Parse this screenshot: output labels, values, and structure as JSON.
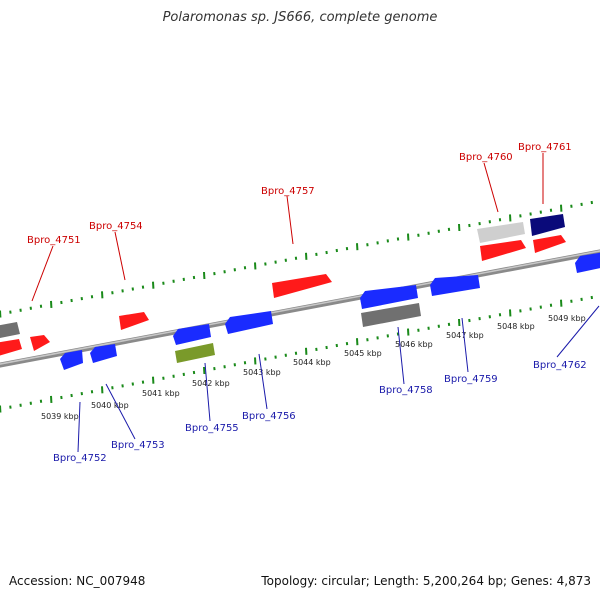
{
  "title": "Polaromonas sp. JS666, complete genome",
  "footer": {
    "accession": "Accession: NC_007948",
    "topology": "Topology: circular; Length: 5,200,264 bp; Genes: 4,873"
  },
  "colors": {
    "red": "#ff1a1a",
    "blue": "#1a2bff",
    "gray": "#707070",
    "lightgray": "#cfcfcf",
    "navy": "#0a0a7a",
    "olive": "#7a9a2a",
    "backbone": "#8a8a8a",
    "tick": "#1a8a1a",
    "label_plus": "#cc0000",
    "label_minus": "#1a1aaa"
  },
  "ruler_labels": [
    "5039 kbp",
    "5040 kbp",
    "5041 kbp",
    "5042 kbp",
    "5043 kbp",
    "5044 kbp",
    "5045 kbp",
    "5046 kbp",
    "5047 kbp",
    "5048 kbp",
    "5049 kbp"
  ],
  "gene_labels": [
    {
      "text": "Bpro_4751",
      "strand": "plus"
    },
    {
      "text": "Bpro_4754",
      "strand": "plus"
    },
    {
      "text": "Bpro_4757",
      "strand": "plus"
    },
    {
      "text": "Bpro_4760",
      "strand": "plus"
    },
    {
      "text": "Bpro_4761",
      "strand": "plus"
    },
    {
      "text": "Bpro_4752",
      "strand": "minus"
    },
    {
      "text": "Bpro_4753",
      "strand": "minus"
    },
    {
      "text": "Bpro_4755",
      "strand": "minus"
    },
    {
      "text": "Bpro_4756",
      "strand": "minus"
    },
    {
      "text": "Bpro_4758",
      "strand": "minus"
    },
    {
      "text": "Bpro_4759",
      "strand": "minus"
    },
    {
      "text": "Bpro_4762",
      "strand": "minus"
    }
  ]
}
